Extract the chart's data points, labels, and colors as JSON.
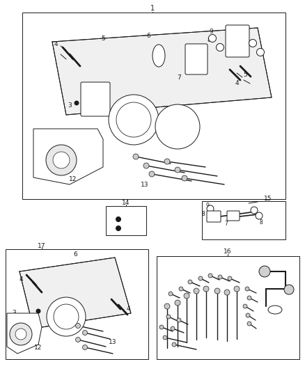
{
  "bg_color": "#ffffff",
  "line_color": "#1a1a1a",
  "fig_width": 4.38,
  "fig_height": 5.33,
  "dpi": 100
}
